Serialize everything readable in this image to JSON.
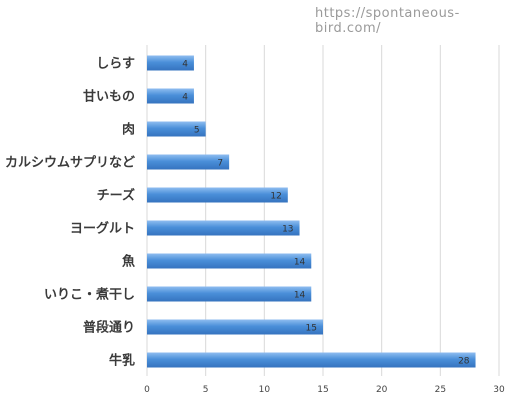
{
  "watermark": "https://spontaneous-bird.com/",
  "chart_data": {
    "type": "bar",
    "orientation": "horizontal",
    "categories": [
      "しらす",
      "甘いもの",
      "肉",
      "カルシウムサプリなど",
      "チーズ",
      "ヨーグルト",
      "魚",
      "いりこ・煮干し",
      "普段通り",
      "牛乳"
    ],
    "values": [
      4,
      4,
      5,
      7,
      12,
      13,
      14,
      14,
      15,
      28
    ],
    "xlim": [
      0,
      30
    ],
    "xticks": [
      0,
      5,
      10,
      15,
      20,
      25,
      30
    ],
    "title": "",
    "xlabel": "",
    "ylabel": "",
    "grid": true,
    "data_labels": true,
    "bar_color": "#4a8fd9",
    "bar_color_light": "#8fbdf0",
    "bar_color_dark": "#3573bf"
  }
}
